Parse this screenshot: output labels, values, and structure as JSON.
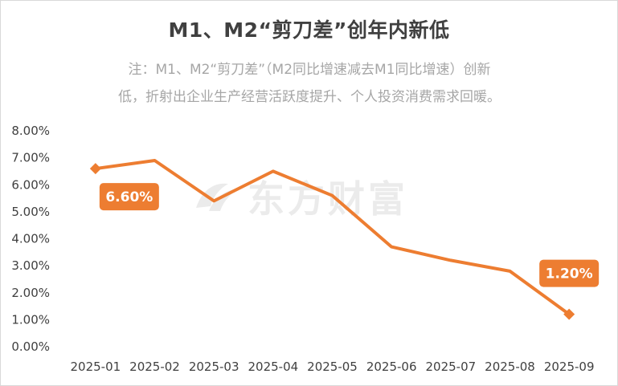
{
  "title": "M1、M2“剪刀差”创年内新低",
  "subtitle_lines": [
    "注：M1、M2“剪刀差”（M2同比增速减去M1同比增速）创新",
    "低，折射出企业生产经营活跃度提升、个人投资消费需求回暖。"
  ],
  "watermark": {
    "text": "东方财富",
    "icon": "eastmoney-logo-icon"
  },
  "chart_data": {
    "type": "line",
    "categories": [
      "2025-01",
      "2025-02",
      "2025-03",
      "2025-04",
      "2025-05",
      "2025-06",
      "2025-07",
      "2025-08",
      "2025-09"
    ],
    "series": [
      {
        "values": [
          6.6,
          6.9,
          5.4,
          6.5,
          5.6,
          3.7,
          3.2,
          2.8,
          1.2
        ]
      }
    ],
    "ylim": [
      0,
      8
    ],
    "yticks": [
      "0.00%",
      "1.00%",
      "2.00%",
      "3.00%",
      "4.00%",
      "5.00%",
      "6.00%",
      "7.00%",
      "8.00%"
    ],
    "data_labels": [
      {
        "index": 0,
        "text": "6.60%"
      },
      {
        "index": 8,
        "text": "1.20%"
      }
    ],
    "line_color": "#ed7d31",
    "label_bg_color": "#ed7d31",
    "grid": false,
    "legend": false
  }
}
